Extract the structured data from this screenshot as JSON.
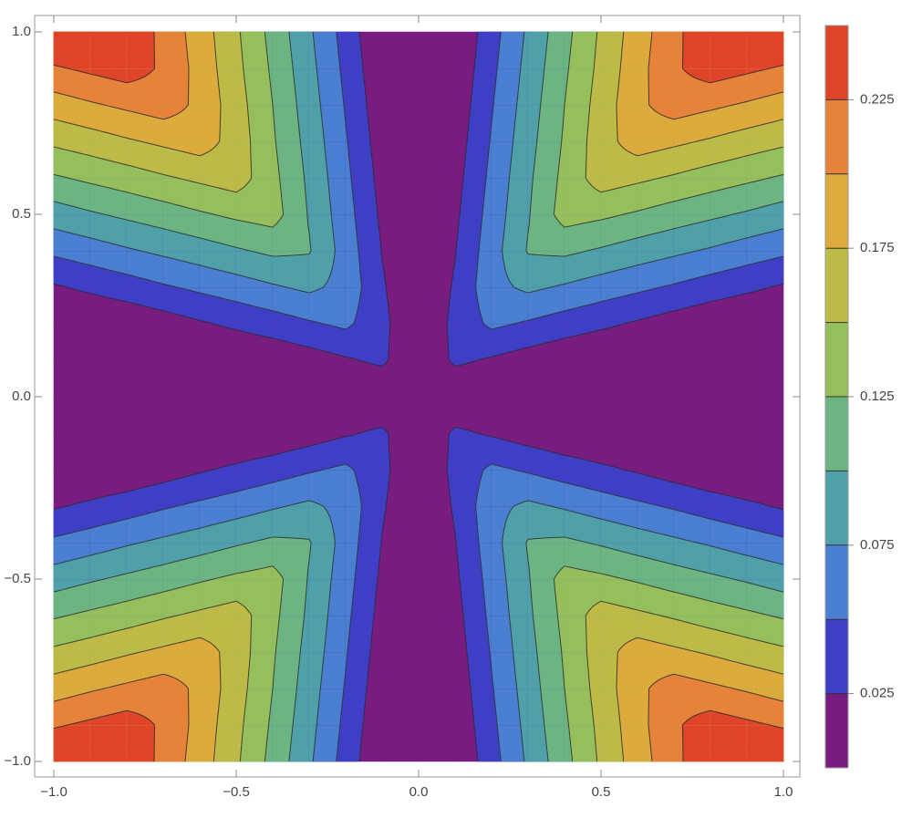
{
  "chart_data": {
    "type": "contour",
    "x": [
      -1,
      -0.9,
      -0.8,
      -0.7,
      -0.6,
      -0.5,
      -0.4,
      -0.3,
      -0.2,
      -0.1,
      0,
      0.1,
      0.2,
      0.3,
      0.4,
      0.5,
      0.6,
      0.7,
      0.8,
      0.9,
      1
    ],
    "y": [
      -1,
      -0.9,
      -0.8,
      -0.7,
      -0.6,
      -0.5,
      -0.4,
      -0.3,
      -0.2,
      -0.1,
      0,
      0.1,
      0.2,
      0.3,
      0.4,
      0.5,
      0.6,
      0.7,
      0.8,
      0.9,
      1
    ],
    "z": [
      [
        0.255,
        0.263,
        0.246,
        0.218,
        0.188,
        0.154,
        0.117,
        0.079,
        0.04,
        0,
        0,
        0,
        0.04,
        0.079,
        0.117,
        0.154,
        0.188,
        0.218,
        0.246,
        0.263,
        0.255
      ],
      [
        0.222,
        0.23,
        0.238,
        0.221,
        0.191,
        0.157,
        0.121,
        0.083,
        0.044,
        0.004,
        0,
        0.004,
        0.044,
        0.083,
        0.121,
        0.157,
        0.191,
        0.221,
        0.238,
        0.23,
        0.222
      ],
      [
        0.188,
        0.197,
        0.205,
        0.213,
        0.194,
        0.161,
        0.125,
        0.087,
        0.048,
        0.008,
        0,
        0.008,
        0.048,
        0.087,
        0.125,
        0.161,
        0.194,
        0.213,
        0.205,
        0.197,
        0.188
      ],
      [
        0.155,
        0.163,
        0.172,
        0.18,
        0.188,
        0.164,
        0.128,
        0.091,
        0.052,
        0.012,
        0,
        0.012,
        0.052,
        0.091,
        0.128,
        0.164,
        0.188,
        0.18,
        0.172,
        0.163,
        0.155
      ],
      [
        0.122,
        0.13,
        0.138,
        0.147,
        0.155,
        0.163,
        0.132,
        0.095,
        0.056,
        0.016,
        0,
        0.016,
        0.056,
        0.095,
        0.132,
        0.163,
        0.155,
        0.147,
        0.138,
        0.13,
        0.122
      ],
      [
        0.088,
        0.097,
        0.105,
        0.113,
        0.122,
        0.13,
        0.136,
        0.098,
        0.06,
        0.02,
        0,
        0.02,
        0.06,
        0.098,
        0.136,
        0.13,
        0.122,
        0.113,
        0.105,
        0.097,
        0.088
      ],
      [
        0.055,
        0.063,
        0.072,
        0.08,
        0.088,
        0.097,
        0.105,
        0.102,
        0.064,
        0.024,
        0,
        0.024,
        0.064,
        0.102,
        0.105,
        0.097,
        0.088,
        0.08,
        0.072,
        0.063,
        0.055
      ],
      [
        0.022,
        0.03,
        0.038,
        0.047,
        0.055,
        0.063,
        0.072,
        0.08,
        0.067,
        0.028,
        0,
        0.028,
        0.067,
        0.08,
        0.072,
        0.063,
        0.055,
        0.047,
        0.038,
        0.03,
        0.022
      ],
      [
        0,
        0,
        0.005,
        0.013,
        0.022,
        0.03,
        0.038,
        0.047,
        0.055,
        0.032,
        0,
        0.032,
        0.055,
        0.047,
        0.038,
        0.03,
        0.022,
        0.013,
        0.005,
        0,
        0
      ],
      [
        0,
        0,
        0,
        0,
        0,
        0,
        0.005,
        0.013,
        0.022,
        0.03,
        0,
        0.03,
        0.022,
        0.013,
        0.005,
        0,
        0,
        0,
        0,
        0,
        0
      ],
      [
        0,
        0,
        0,
        0,
        0,
        0,
        0,
        0,
        0,
        0,
        0,
        0,
        0,
        0,
        0,
        0,
        0,
        0,
        0,
        0,
        0
      ],
      [
        0,
        0,
        0,
        0,
        0,
        0,
        0.005,
        0.013,
        0.022,
        0.03,
        0,
        0.03,
        0.022,
        0.013,
        0.005,
        0,
        0,
        0,
        0,
        0,
        0
      ],
      [
        0,
        0,
        0.005,
        0.013,
        0.022,
        0.03,
        0.038,
        0.047,
        0.055,
        0.032,
        0,
        0.032,
        0.055,
        0.047,
        0.038,
        0.03,
        0.022,
        0.013,
        0.005,
        0,
        0
      ],
      [
        0.022,
        0.03,
        0.038,
        0.047,
        0.055,
        0.063,
        0.072,
        0.08,
        0.067,
        0.028,
        0,
        0.028,
        0.067,
        0.08,
        0.072,
        0.063,
        0.055,
        0.047,
        0.038,
        0.03,
        0.022
      ],
      [
        0.055,
        0.063,
        0.072,
        0.08,
        0.088,
        0.097,
        0.105,
        0.102,
        0.064,
        0.024,
        0,
        0.024,
        0.064,
        0.102,
        0.105,
        0.097,
        0.088,
        0.08,
        0.072,
        0.063,
        0.055
      ],
      [
        0.088,
        0.097,
        0.105,
        0.113,
        0.122,
        0.13,
        0.136,
        0.098,
        0.06,
        0.02,
        0,
        0.02,
        0.06,
        0.098,
        0.136,
        0.13,
        0.122,
        0.113,
        0.105,
        0.097,
        0.088
      ],
      [
        0.122,
        0.13,
        0.138,
        0.147,
        0.155,
        0.163,
        0.132,
        0.095,
        0.056,
        0.016,
        0,
        0.016,
        0.056,
        0.095,
        0.132,
        0.163,
        0.155,
        0.147,
        0.138,
        0.13,
        0.122
      ],
      [
        0.155,
        0.163,
        0.172,
        0.18,
        0.188,
        0.164,
        0.128,
        0.091,
        0.052,
        0.012,
        0,
        0.012,
        0.052,
        0.091,
        0.128,
        0.164,
        0.188,
        0.18,
        0.172,
        0.163,
        0.155
      ],
      [
        0.188,
        0.197,
        0.205,
        0.213,
        0.194,
        0.161,
        0.125,
        0.087,
        0.048,
        0.008,
        0,
        0.008,
        0.048,
        0.087,
        0.125,
        0.161,
        0.194,
        0.213,
        0.205,
        0.197,
        0.188
      ],
      [
        0.222,
        0.23,
        0.238,
        0.221,
        0.191,
        0.157,
        0.121,
        0.083,
        0.044,
        0.004,
        0,
        0.004,
        0.044,
        0.083,
        0.121,
        0.157,
        0.191,
        0.221,
        0.238,
        0.23,
        0.222
      ],
      [
        0.255,
        0.263,
        0.246,
        0.218,
        0.188,
        0.154,
        0.117,
        0.079,
        0.04,
        0,
        0,
        0,
        0.04,
        0.079,
        0.117,
        0.154,
        0.188,
        0.218,
        0.246,
        0.263,
        0.255
      ]
    ],
    "xlim": [
      -1,
      1
    ],
    "ylim": [
      -1,
      1
    ],
    "xticks": [
      {
        "value": -1,
        "label": "−1.0"
      },
      {
        "value": -0.5,
        "label": "−0.5"
      },
      {
        "value": 0,
        "label": "0.0"
      },
      {
        "value": 0.5,
        "label": "0.5"
      },
      {
        "value": 1,
        "label": "1.0"
      }
    ],
    "yticks": [
      {
        "value": -1,
        "label": "−1.0"
      },
      {
        "value": -0.5,
        "label": "−0.5"
      },
      {
        "value": 0,
        "label": "0.0"
      },
      {
        "value": 0.5,
        "label": "0.5"
      },
      {
        "value": 1,
        "label": "1.0"
      }
    ],
    "contour_lines": true,
    "colorbar": {
      "lim": [
        0,
        0.25
      ],
      "ticks": [
        0.025,
        0.075,
        0.125,
        0.175,
        0.225
      ],
      "levels": [
        0,
        0.025,
        0.05,
        0.075,
        0.1,
        0.125,
        0.15,
        0.175,
        0.2,
        0.225,
        0.25
      ],
      "colors": [
        "#781c81",
        "#3f3fc6",
        "#4a7fd1",
        "#50a0aa",
        "#6cb482",
        "#96bf5c",
        "#bdbb47",
        "#dcab3c",
        "#e6823a",
        "#df4529"
      ]
    }
  }
}
